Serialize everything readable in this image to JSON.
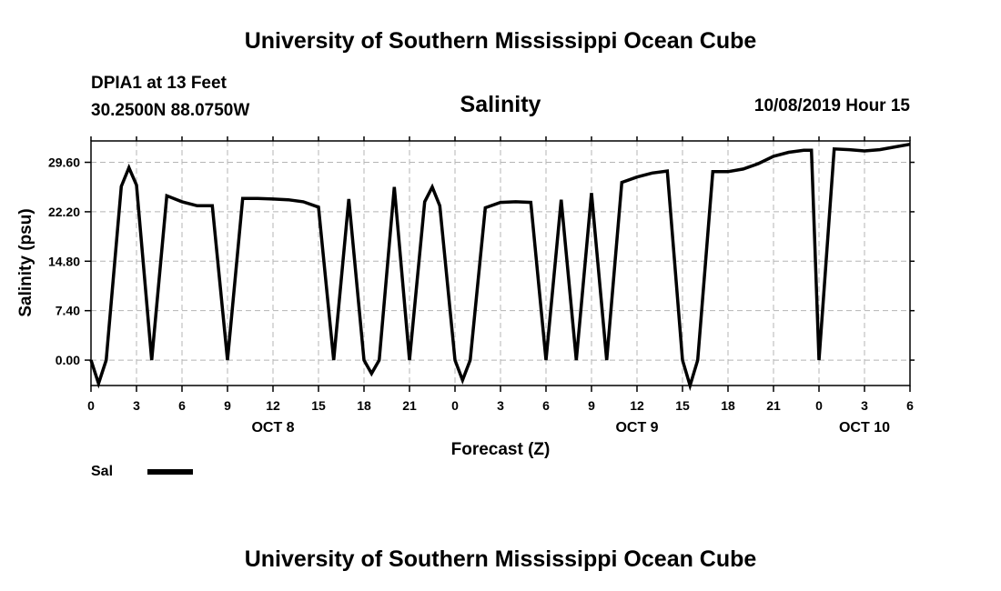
{
  "header": {
    "title": "University of Southern Mississippi Ocean Cube",
    "station": "DPIA1 at 13 Feet",
    "location": "30.2500N 88.0750W",
    "datetime": "10/08/2019 Hour 15"
  },
  "footer": {
    "title": "University of Southern Mississippi Ocean Cube"
  },
  "chart_data": {
    "type": "line",
    "title": "Salinity",
    "xlabel": "Forecast (Z)",
    "ylabel": "Salinity (psu)",
    "xlim": [
      0,
      54
    ],
    "ylim": [
      -3.8,
      32.8
    ],
    "grid": true,
    "grid_style": "dashed",
    "yticks": [
      0.0,
      7.4,
      14.8,
      22.2,
      29.6
    ],
    "ytick_labels": [
      "0.00",
      "7.40",
      "14.80",
      "22.20",
      "29.60"
    ],
    "xticks": [
      0,
      3,
      6,
      9,
      12,
      15,
      18,
      21,
      24,
      27,
      30,
      33,
      36,
      39,
      42,
      45,
      48,
      51,
      54
    ],
    "xtick_labels": [
      "0",
      "3",
      "6",
      "9",
      "12",
      "15",
      "18",
      "21",
      "0",
      "3",
      "6",
      "9",
      "12",
      "15",
      "18",
      "21",
      "0",
      "3",
      "6"
    ],
    "day_labels": [
      {
        "x": 12,
        "label": "OCT 8"
      },
      {
        "x": 36,
        "label": "OCT 9"
      },
      {
        "x": 51,
        "label": "OCT 10"
      }
    ],
    "legend_position": "bottom-left",
    "series": [
      {
        "name": "Sal",
        "color": "#000000",
        "x": [
          0,
          0.5,
          1,
          2,
          2.5,
          3,
          4,
          5,
          6,
          7,
          8,
          9,
          10,
          11,
          12,
          13,
          14,
          15,
          16,
          17,
          18,
          18.5,
          19,
          20,
          21,
          22,
          22.5,
          23,
          24,
          24.5,
          25,
          26,
          27,
          28,
          29,
          30,
          31,
          32,
          33,
          34,
          35,
          36,
          37,
          38,
          39,
          39.5,
          40,
          41,
          42,
          43,
          44,
          45,
          46,
          47,
          47.5,
          48,
          49,
          50,
          51,
          52,
          53,
          54
        ],
        "values": [
          0,
          -3.5,
          0,
          26,
          28.8,
          26.2,
          0,
          24.6,
          23.7,
          23.1,
          23.1,
          0,
          24.2,
          24.2,
          24.1,
          24,
          23.7,
          22.9,
          0,
          24.1,
          0,
          -2,
          0,
          25.9,
          0,
          23.7,
          25.9,
          23.1,
          0,
          -3,
          0,
          22.8,
          23.6,
          23.7,
          23.6,
          0,
          24,
          0,
          25,
          0,
          26.6,
          27.4,
          28,
          28.3,
          0,
          -3.8,
          0,
          28.2,
          28.2,
          28.6,
          29.4,
          30.5,
          31.1,
          31.4,
          31.4,
          0,
          31.6,
          31.5,
          31.3,
          31.5,
          31.9,
          32.3
        ]
      }
    ]
  }
}
